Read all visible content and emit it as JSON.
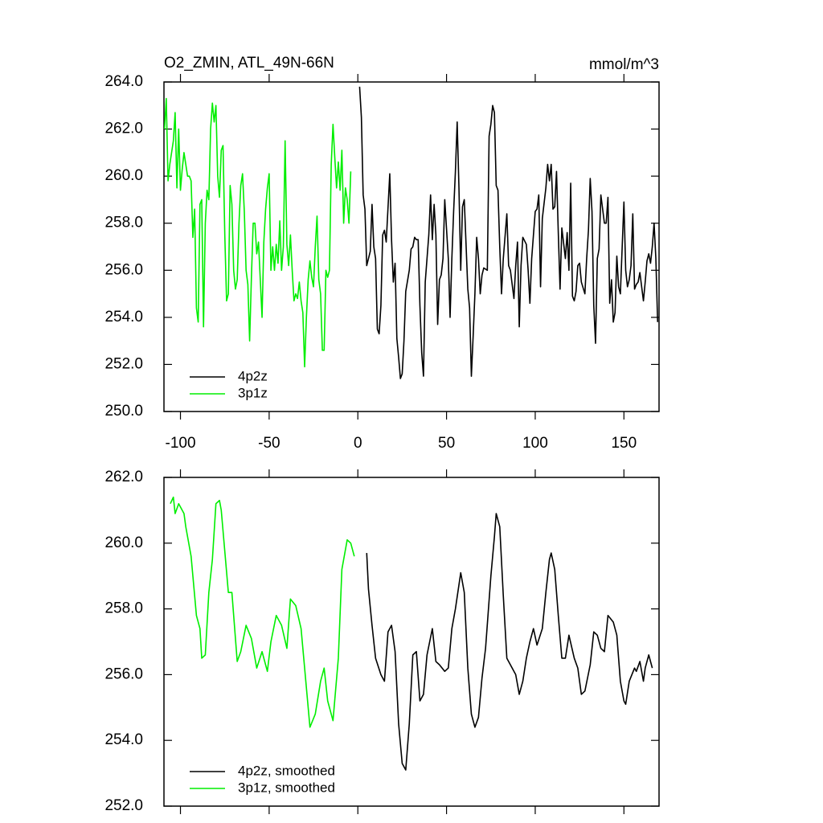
{
  "chart_data": [
    {
      "type": "line",
      "title": "O2_ZMIN, ATL_49N-66N",
      "units": "mmol/m^3",
      "xlim": [
        -109.3,
        169.8
      ],
      "xticks": [
        -100,
        -50,
        0,
        50,
        100,
        150
      ],
      "xtick_labels": true,
      "ylim": [
        250,
        264
      ],
      "yticks": [
        {
          "value": 250,
          "label": "250.0"
        },
        {
          "value": 252,
          "label": "252.0"
        },
        {
          "value": 254,
          "label": "254.0"
        },
        {
          "value": 256,
          "label": "256.0"
        },
        {
          "value": 258,
          "label": "258.0"
        },
        {
          "value": 260,
          "label": "260.0"
        },
        {
          "value": 262,
          "label": "262.0"
        },
        {
          "value": 264,
          "label": "264.0"
        }
      ],
      "legend": "lower left",
      "series": [
        {
          "name": "4p2z",
          "color": "#000000",
          "x": [
            1,
            2,
            3,
            4,
            5,
            7,
            8,
            9,
            10,
            11,
            12,
            13,
            14,
            15,
            16,
            18,
            19,
            20,
            21,
            22,
            23,
            24,
            25,
            26,
            27,
            29,
            30,
            31,
            32,
            33,
            34,
            35,
            36,
            37,
            38,
            40,
            41,
            42,
            43,
            44,
            45,
            46,
            47,
            48,
            49,
            51,
            52,
            53,
            54,
            55,
            56,
            57,
            58,
            59,
            60,
            62,
            63,
            64,
            65,
            66,
            67,
            68,
            69,
            70,
            71,
            73,
            74,
            75,
            76,
            77,
            78,
            79,
            80,
            81,
            82,
            84,
            85,
            86,
            87,
            88,
            89,
            90,
            91,
            92,
            93,
            95,
            96,
            97,
            98,
            99,
            100,
            101,
            102,
            103,
            104,
            106,
            107,
            108,
            109,
            110,
            111,
            112,
            113,
            114,
            115,
            117,
            118,
            119,
            120,
            121,
            122,
            123,
            124,
            125,
            126,
            128,
            129,
            130,
            131,
            132,
            133,
            134,
            135,
            136,
            137,
            139,
            140,
            141,
            142,
            143,
            144,
            145,
            146,
            147,
            148,
            150,
            151,
            152,
            153,
            154,
            155,
            156,
            157,
            158,
            159,
            161,
            162,
            163,
            164,
            165,
            166,
            167,
            168,
            169
          ],
          "values": [
            263.8,
            262.5,
            259.2,
            258.6,
            256.2,
            256.8,
            258.8,
            257,
            256.5,
            253.5,
            253.3,
            254.5,
            257.5,
            257.7,
            257.2,
            260.1,
            257.3,
            255.5,
            256.3,
            253.1,
            252.3,
            251.4,
            251.6,
            253,
            255.1,
            256,
            256.9,
            257,
            257.4,
            257.3,
            257.3,
            254.5,
            252.5,
            251.5,
            255.5,
            257.5,
            259.2,
            257.3,
            258.8,
            257.5,
            253.7,
            255.6,
            255.8,
            256.5,
            259,
            256.5,
            254,
            256.5,
            258.5,
            260.2,
            262.3,
            259.5,
            256,
            258.7,
            259,
            255.2,
            254.4,
            251.5,
            253.2,
            255,
            257.4,
            256.5,
            255,
            255.8,
            256.1,
            256,
            261.7,
            262.2,
            263,
            262.7,
            259.6,
            259.4,
            257,
            255,
            256.5,
            258.4,
            256.2,
            256,
            255.4,
            254.8,
            256.2,
            257.2,
            253.6,
            256.2,
            257.4,
            257.1,
            256,
            254.6,
            256.5,
            257.5,
            258.5,
            258.6,
            259.2,
            255.3,
            258.2,
            259.5,
            260.5,
            259.8,
            260.5,
            258.6,
            258.7,
            260.2,
            257.6,
            255.2,
            257.8,
            256.5,
            257.6,
            256,
            259.7,
            254.9,
            254.7,
            255.1,
            256.2,
            256.3,
            255.5,
            255,
            256.5,
            257.7,
            259.9,
            258.5,
            254.5,
            252.9,
            256.5,
            256.9,
            259.2,
            258,
            258,
            259.1,
            254.6,
            255.6,
            253.8,
            254.2,
            256.6,
            255.3,
            255,
            258.9,
            256,
            255.3,
            255.6,
            256.2,
            258.4,
            255.2,
            255.4,
            255.5,
            255.9,
            254.7,
            255.5,
            256.4,
            256.7,
            256.3,
            257,
            258,
            256.5,
            253.8
          ]
        },
        {
          "name": "3p1z",
          "color": "#00ee00",
          "x": [
            -109,
            -108,
            -107,
            -106,
            -105,
            -104,
            -103,
            -102,
            -101,
            -100,
            -99,
            -98,
            -97,
            -96,
            -95,
            -94,
            -93,
            -92,
            -91,
            -90,
            -89,
            -88,
            -87,
            -86,
            -85,
            -84,
            -83,
            -82,
            -81,
            -80,
            -79,
            -78,
            -77,
            -76,
            -75,
            -74,
            -73,
            -72,
            -71,
            -70,
            -69,
            -68,
            -67,
            -66,
            -65,
            -64,
            -63,
            -62,
            -61,
            -60,
            -59,
            -58,
            -57,
            -56,
            -55,
            -54,
            -53,
            -52,
            -51,
            -50,
            -49,
            -48,
            -47,
            -46,
            -45,
            -44,
            -43,
            -42,
            -41,
            -40,
            -39,
            -38,
            -37,
            -36,
            -35,
            -34,
            -33,
            -32,
            -31,
            -30,
            -29,
            -28,
            -27,
            -26,
            -25,
            -24,
            -23,
            -22,
            -21,
            -20,
            -19,
            -18,
            -17,
            -16,
            -15,
            -14,
            -13,
            -12,
            -11,
            -10,
            -9,
            -8,
            -7,
            -6,
            -5,
            -4
          ],
          "values": [
            262,
            263.3,
            259.8,
            260.5,
            261,
            261.5,
            262.7,
            259.5,
            262,
            259.4,
            260.3,
            261,
            260.5,
            260,
            260,
            259.8,
            257.4,
            258.6,
            254.4,
            253.8,
            258.8,
            259,
            253.6,
            258,
            259.4,
            259,
            262,
            263.1,
            262.3,
            263,
            260,
            259.1,
            261.1,
            261.3,
            257.5,
            254.7,
            255,
            259.6,
            258.8,
            256,
            255.2,
            255.6,
            258,
            259.6,
            260.1,
            258.5,
            256,
            255.4,
            253,
            255.7,
            258,
            258,
            256.7,
            257.2,
            255.6,
            254,
            257.2,
            258.6,
            259.5,
            260.1,
            256,
            257,
            256,
            257.1,
            256.3,
            258.1,
            256,
            257,
            261.5,
            257.1,
            256.2,
            257.5,
            256,
            254.7,
            255,
            254.8,
            255.5,
            254.7,
            254.2,
            251.9,
            254,
            255.6,
            256.4,
            255.7,
            255.3,
            257,
            258.3,
            255.6,
            255,
            252.6,
            252.6,
            256,
            255.7,
            256,
            260.5,
            262.2,
            260.8,
            259.5,
            260.6,
            259.4,
            261.1,
            258,
            259.5,
            259,
            258,
            260.2
          ]
        }
      ]
    },
    {
      "type": "line",
      "xlim": [
        -109.3,
        169.8
      ],
      "xticks": [
        -100,
        -50,
        0,
        50,
        100,
        150
      ],
      "xtick_labels": false,
      "ylim": [
        252,
        262
      ],
      "yticks": [
        {
          "value": 252,
          "label": "252.0"
        },
        {
          "value": 254,
          "label": "254.0"
        },
        {
          "value": 256,
          "label": "256.0"
        },
        {
          "value": 258,
          "label": "258.0"
        },
        {
          "value": 260,
          "label": "260.0"
        },
        {
          "value": 262,
          "label": "262.0"
        }
      ],
      "legend": "lower left",
      "series": [
        {
          "name": "4p2z, smoothed",
          "color": "#000000",
          "x": [
            5,
            6,
            8,
            10,
            13,
            15,
            17,
            19,
            21,
            23,
            25,
            27,
            29,
            31,
            33,
            35,
            37,
            39,
            42,
            44,
            46,
            49,
            51,
            53,
            55,
            58,
            60,
            62,
            64,
            66,
            68,
            70,
            72,
            75,
            77,
            78,
            80,
            82,
            84,
            86,
            89,
            91,
            93,
            95,
            97,
            99,
            101,
            104,
            106,
            108,
            109,
            111,
            113,
            115,
            117,
            119,
            122,
            124,
            126,
            128,
            131,
            133,
            135,
            137,
            139,
            141,
            144,
            146,
            148,
            150,
            151,
            153,
            156,
            157,
            159,
            161,
            162,
            164,
            166
          ],
          "values": [
            259.7,
            258.6,
            257.5,
            256.5,
            256,
            255.8,
            257.3,
            257.5,
            256.7,
            254.5,
            253.3,
            253.1,
            254.5,
            256.6,
            256.7,
            255.2,
            255.4,
            256.6,
            257.4,
            256.4,
            256.3,
            256.1,
            256.2,
            257.4,
            258,
            259.1,
            258.5,
            256.2,
            254.8,
            254.4,
            254.7,
            255.9,
            256.8,
            259,
            260.2,
            260.9,
            260.5,
            258.4,
            256.5,
            256.3,
            256,
            255.4,
            255.8,
            256.5,
            257,
            257.4,
            256.9,
            257.4,
            258.5,
            259.5,
            259.7,
            259.2,
            257.8,
            256.5,
            256.5,
            257.2,
            256.5,
            256.2,
            255.4,
            255.5,
            256.3,
            257.3,
            257.2,
            256.8,
            256.7,
            257.8,
            257.6,
            257.2,
            255.8,
            255.2,
            255.1,
            255.8,
            256.2,
            256.1,
            256.4,
            255.8,
            256.2,
            256.6,
            256.2
          ]
        },
        {
          "name": "3p1z, smoothed",
          "color": "#00ee00",
          "x": [
            -105.7,
            -104,
            -103,
            -101,
            -98,
            -97,
            -94,
            -91,
            -89,
            -88,
            -86,
            -84,
            -82,
            -80,
            -78,
            -77,
            -73,
            -71,
            -68,
            -66,
            -63,
            -60,
            -57,
            -54,
            -51,
            -49,
            -46,
            -43,
            -40,
            -38,
            -35,
            -32,
            -29,
            -27,
            -24,
            -21,
            -19,
            -17,
            -14,
            -11,
            -9,
            -6,
            -4,
            -2
          ],
          "values": [
            261.2,
            261.4,
            260.9,
            261.2,
            260.9,
            260.5,
            259.6,
            257.8,
            257.4,
            256.5,
            256.6,
            258.5,
            259.5,
            261.2,
            261.3,
            261,
            258.5,
            258.5,
            256.4,
            256.7,
            257.5,
            257.1,
            256.2,
            256.7,
            256.1,
            257,
            257.8,
            257.5,
            256.8,
            258.3,
            258.1,
            257.4,
            255.6,
            254.4,
            254.8,
            255.8,
            256.2,
            255.2,
            254.6,
            256.5,
            259.2,
            260.1,
            260,
            259.6
          ]
        }
      ]
    }
  ]
}
